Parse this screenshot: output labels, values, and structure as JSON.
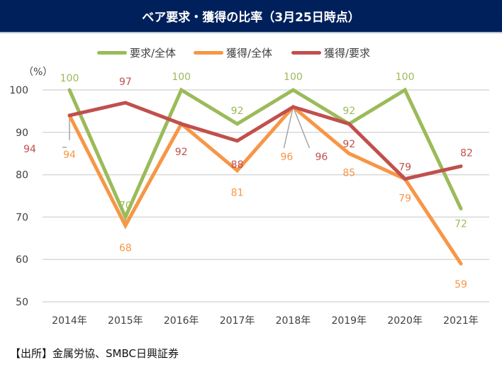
{
  "header": {
    "title": "ベア要求・獲得の比率（3月25日時点）"
  },
  "source": "【出所】金属労協、SMBC日興証券",
  "chart_data": {
    "type": "line",
    "title": "ベア要求・獲得の比率（3月25日時点）",
    "xlabel": "",
    "ylabel": "（%）",
    "ylim": [
      50,
      100
    ],
    "yticks": [
      50,
      60,
      70,
      80,
      90,
      100
    ],
    "grid": true,
    "legend_position": "top",
    "categories": [
      "2014年",
      "2015年",
      "2016年",
      "2017年",
      "2018年",
      "2019年",
      "2020年",
      "2021年"
    ],
    "series": [
      {
        "name": "要求/全体",
        "color": "#9bbb59",
        "values": [
          100,
          70,
          100,
          92,
          100,
          92,
          100,
          72
        ]
      },
      {
        "name": "獲得/全体",
        "color": "#f79646",
        "values": [
          94,
          68,
          92,
          81,
          96,
          85,
          79,
          59
        ]
      },
      {
        "name": "獲得/要求",
        "color": "#c0504d",
        "values": [
          94,
          97,
          92,
          88,
          96,
          92,
          79,
          82
        ]
      }
    ]
  }
}
